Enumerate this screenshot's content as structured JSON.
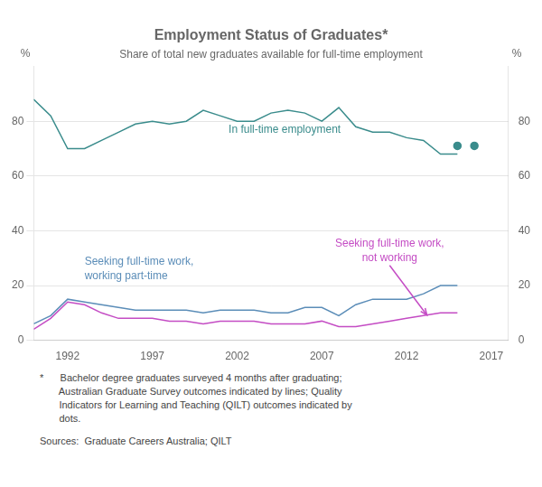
{
  "chart_data": {
    "type": "line",
    "title": "Employment Status of Graduates*",
    "subtitle": "Share of total new graduates available for full-time employment",
    "footnote": [
      "*      Bachelor degree graduates surveyed 4 months after graduating;",
      "       Australian Graduate Survey outcomes indicated by lines; Quality",
      "       Indicators for Learning and Teaching (QILT) outcomes indicated by",
      "       dots."
    ],
    "sources": "Sources:  Graduate Careers Australia; QILT",
    "ylabel": "%",
    "y2label": "%",
    "xlim": [
      1990,
      2018
    ],
    "xticks": [
      1992,
      1997,
      2002,
      2007,
      2012,
      2017
    ],
    "ylim": [
      0,
      100
    ],
    "yticks": [
      0,
      20,
      40,
      60,
      80
    ],
    "y2lim": [
      0,
      100
    ],
    "y2ticks": [
      0,
      20,
      40,
      60,
      80
    ],
    "grid": "y",
    "legend": false,
    "series": [
      {
        "color": "#3A8C8C",
        "marker": "none",
        "line_style": "solid",
        "x": [
          1990,
          1991,
          1992,
          1993,
          1994,
          1995,
          1996,
          1997,
          1998,
          1999,
          2000,
          2001,
          2002,
          2003,
          2004,
          2005,
          2006,
          2007,
          2008,
          2009,
          2010,
          2011,
          2012,
          2013,
          2014,
          2015
        ],
        "values": [
          88,
          82,
          70,
          70,
          73,
          76,
          79,
          80,
          79,
          80,
          84,
          82,
          80,
          80,
          83,
          84,
          83,
          80,
          85,
          78,
          76,
          76,
          74,
          73,
          68,
          68
        ]
      },
      {
        "color": "#3A8C8C",
        "marker": "circle",
        "line_style": "none",
        "x": [
          2015,
          2016
        ],
        "values": [
          71,
          71
        ]
      },
      {
        "color": "#5B8DB8",
        "marker": "none",
        "line_style": "solid",
        "x": [
          1990,
          1991,
          1992,
          1993,
          1994,
          1995,
          1996,
          1997,
          1998,
          1999,
          2000,
          2001,
          2002,
          2003,
          2004,
          2005,
          2006,
          2007,
          2008,
          2009,
          2010,
          2011,
          2012,
          2013,
          2014,
          2015
        ],
        "values": [
          6,
          9,
          15,
          14,
          13,
          12,
          11,
          11,
          11,
          11,
          10,
          11,
          11,
          11,
          10,
          10,
          12,
          12,
          9,
          13,
          15,
          15,
          15,
          17,
          20,
          20
        ]
      },
      {
        "color": "#C44CC4",
        "marker": "none",
        "line_style": "solid",
        "x": [
          1990,
          1991,
          1992,
          1993,
          1994,
          1995,
          1996,
          1997,
          1998,
          1999,
          2000,
          2001,
          2002,
          2003,
          2004,
          2005,
          2006,
          2007,
          2008,
          2009,
          2010,
          2011,
          2012,
          2013,
          2014,
          2015
        ],
        "values": [
          4,
          8,
          14,
          13,
          10,
          8,
          8,
          8,
          7,
          7,
          6,
          7,
          7,
          7,
          6,
          6,
          6,
          7,
          5,
          5,
          6,
          7,
          8,
          9,
          10,
          10
        ]
      }
    ],
    "annotations": [
      {
        "text": "In full-time employment",
        "x": 2001.5,
        "y": 77,
        "color": "#3A8C8C"
      },
      {
        "text": "Seeking full-time work,\nworking part-time",
        "x": 1993,
        "y": 26,
        "color": "#5B8DB8"
      },
      {
        "text": "Seeking full-time work,\nnot working",
        "x": 2011,
        "y": 28,
        "color": "#C44CC4",
        "arrow_to": [
          2013.2,
          9.2
        ]
      }
    ]
  }
}
